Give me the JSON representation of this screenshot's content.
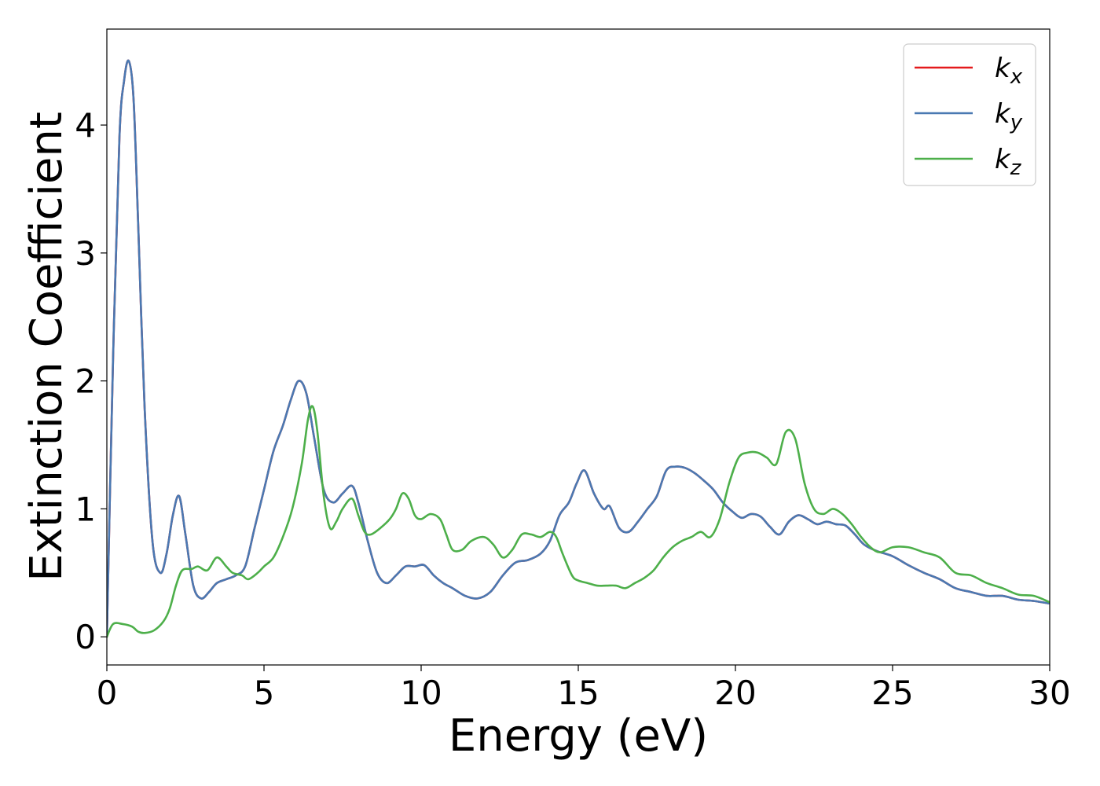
{
  "chart_data": {
    "type": "line",
    "xlabel": "Energy (eV)",
    "ylabel": "Extinction Coefficient",
    "xlim": [
      0,
      30
    ],
    "ylim": [
      -0.22,
      4.75
    ],
    "xticks": [
      0,
      5,
      10,
      15,
      20,
      25,
      30
    ],
    "yticks": [
      0,
      1,
      2,
      3,
      4
    ],
    "grid": false,
    "legend_position": "top-right",
    "series": [
      {
        "name": "k",
        "sub": "x",
        "color": "#e41a1c",
        "x": [
          0,
          0.2,
          0.4,
          0.55,
          0.7,
          0.85,
          1.0,
          1.2,
          1.45,
          1.7,
          1.9,
          2.1,
          2.3,
          2.5,
          2.75,
          3.0,
          3.25,
          3.5,
          3.8,
          4.1,
          4.4,
          4.7,
          5.0,
          5.3,
          5.6,
          5.85,
          6.1,
          6.35,
          6.6,
          6.9,
          7.2,
          7.5,
          7.8,
          8.0,
          8.3,
          8.6,
          8.9,
          9.2,
          9.5,
          9.8,
          10.1,
          10.4,
          10.7,
          11.0,
          11.4,
          11.8,
          12.2,
          12.6,
          13.0,
          13.4,
          13.8,
          14.1,
          14.4,
          14.7,
          14.95,
          15.2,
          15.5,
          15.8,
          16.0,
          16.3,
          16.6,
          16.9,
          17.2,
          17.5,
          17.8,
          18.1,
          18.4,
          18.7,
          19.0,
          19.3,
          19.6,
          19.9,
          20.2,
          20.5,
          20.8,
          21.1,
          21.4,
          21.7,
          22.0,
          22.3,
          22.6,
          22.9,
          23.2,
          23.5,
          23.8,
          24.1,
          24.5,
          25.0,
          25.5,
          26.0,
          26.5,
          27.0,
          27.5,
          28.0,
          28.5,
          29.0,
          29.5,
          30.0
        ],
        "y": [
          0.0,
          2.2,
          3.9,
          4.35,
          4.5,
          4.2,
          3.2,
          1.8,
          0.75,
          0.5,
          0.65,
          0.95,
          1.1,
          0.8,
          0.4,
          0.3,
          0.35,
          0.42,
          0.45,
          0.48,
          0.55,
          0.85,
          1.15,
          1.45,
          1.65,
          1.85,
          2.0,
          1.9,
          1.55,
          1.15,
          1.05,
          1.12,
          1.18,
          1.05,
          0.75,
          0.5,
          0.42,
          0.48,
          0.55,
          0.55,
          0.56,
          0.48,
          0.42,
          0.38,
          0.32,
          0.3,
          0.35,
          0.48,
          0.58,
          0.6,
          0.65,
          0.75,
          0.95,
          1.05,
          1.2,
          1.3,
          1.12,
          1.0,
          1.02,
          0.85,
          0.82,
          0.9,
          1.0,
          1.1,
          1.3,
          1.33,
          1.32,
          1.28,
          1.22,
          1.15,
          1.05,
          0.98,
          0.93,
          0.96,
          0.94,
          0.86,
          0.8,
          0.9,
          0.95,
          0.92,
          0.88,
          0.9,
          0.88,
          0.87,
          0.8,
          0.72,
          0.67,
          0.63,
          0.56,
          0.5,
          0.45,
          0.38,
          0.35,
          0.32,
          0.32,
          0.29,
          0.28,
          0.26
        ]
      },
      {
        "name": "k",
        "sub": "y",
        "color": "#4a79b2",
        "x": [
          0,
          0.2,
          0.4,
          0.55,
          0.7,
          0.85,
          1.0,
          1.2,
          1.45,
          1.7,
          1.9,
          2.1,
          2.3,
          2.5,
          2.75,
          3.0,
          3.25,
          3.5,
          3.8,
          4.1,
          4.4,
          4.7,
          5.0,
          5.3,
          5.6,
          5.85,
          6.1,
          6.35,
          6.6,
          6.9,
          7.2,
          7.5,
          7.8,
          8.0,
          8.3,
          8.6,
          8.9,
          9.2,
          9.5,
          9.8,
          10.1,
          10.4,
          10.7,
          11.0,
          11.4,
          11.8,
          12.2,
          12.6,
          13.0,
          13.4,
          13.8,
          14.1,
          14.4,
          14.7,
          14.95,
          15.2,
          15.5,
          15.8,
          16.0,
          16.3,
          16.6,
          16.9,
          17.2,
          17.5,
          17.8,
          18.1,
          18.4,
          18.7,
          19.0,
          19.3,
          19.6,
          19.9,
          20.2,
          20.5,
          20.8,
          21.1,
          21.4,
          21.7,
          22.0,
          22.3,
          22.6,
          22.9,
          23.2,
          23.5,
          23.8,
          24.1,
          24.5,
          25.0,
          25.5,
          26.0,
          26.5,
          27.0,
          27.5,
          28.0,
          28.5,
          29.0,
          29.5,
          30.0
        ],
        "y": [
          0.0,
          2.2,
          3.9,
          4.35,
          4.5,
          4.2,
          3.2,
          1.8,
          0.75,
          0.5,
          0.65,
          0.95,
          1.1,
          0.8,
          0.4,
          0.3,
          0.35,
          0.42,
          0.45,
          0.48,
          0.55,
          0.85,
          1.15,
          1.45,
          1.65,
          1.85,
          2.0,
          1.9,
          1.55,
          1.15,
          1.05,
          1.12,
          1.18,
          1.05,
          0.75,
          0.5,
          0.42,
          0.48,
          0.55,
          0.55,
          0.56,
          0.48,
          0.42,
          0.38,
          0.32,
          0.3,
          0.35,
          0.48,
          0.58,
          0.6,
          0.65,
          0.75,
          0.95,
          1.05,
          1.2,
          1.3,
          1.12,
          1.0,
          1.02,
          0.85,
          0.82,
          0.9,
          1.0,
          1.1,
          1.3,
          1.33,
          1.32,
          1.28,
          1.22,
          1.15,
          1.05,
          0.98,
          0.93,
          0.96,
          0.94,
          0.86,
          0.8,
          0.9,
          0.95,
          0.92,
          0.88,
          0.9,
          0.88,
          0.87,
          0.8,
          0.72,
          0.67,
          0.63,
          0.56,
          0.5,
          0.45,
          0.38,
          0.35,
          0.32,
          0.32,
          0.29,
          0.28,
          0.26
        ]
      },
      {
        "name": "k",
        "sub": "z",
        "color": "#4daf4a",
        "x": [
          0,
          0.2,
          0.5,
          0.8,
          1.0,
          1.2,
          1.5,
          1.8,
          2.0,
          2.2,
          2.4,
          2.7,
          2.9,
          3.2,
          3.5,
          3.8,
          4.0,
          4.3,
          4.5,
          4.8,
          5.0,
          5.3,
          5.6,
          5.9,
          6.2,
          6.4,
          6.55,
          6.7,
          6.9,
          7.1,
          7.3,
          7.5,
          7.8,
          8.0,
          8.2,
          8.4,
          8.7,
          9.0,
          9.2,
          9.4,
          9.6,
          9.8,
          10.0,
          10.3,
          10.6,
          10.8,
          11.0,
          11.3,
          11.6,
          12.0,
          12.3,
          12.6,
          12.9,
          13.2,
          13.5,
          13.8,
          14.1,
          14.3,
          14.5,
          14.8,
          15.0,
          15.3,
          15.6,
          15.9,
          16.2,
          16.5,
          16.8,
          17.1,
          17.4,
          17.7,
          18.0,
          18.3,
          18.6,
          18.9,
          19.2,
          19.5,
          19.8,
          20.1,
          20.4,
          20.7,
          21.0,
          21.3,
          21.6,
          21.9,
          22.2,
          22.5,
          22.8,
          23.1,
          23.4,
          23.7,
          24.0,
          24.3,
          24.6,
          25.0,
          25.5,
          26.0,
          26.5,
          27.0,
          27.5,
          28.0,
          28.5,
          29.0,
          29.5,
          30.0
        ],
        "y": [
          0.0,
          0.1,
          0.1,
          0.08,
          0.04,
          0.03,
          0.05,
          0.12,
          0.22,
          0.4,
          0.52,
          0.53,
          0.55,
          0.52,
          0.62,
          0.55,
          0.5,
          0.48,
          0.45,
          0.5,
          0.55,
          0.62,
          0.78,
          1.0,
          1.35,
          1.7,
          1.8,
          1.6,
          1.1,
          0.85,
          0.9,
          1.0,
          1.08,
          0.95,
          0.82,
          0.8,
          0.85,
          0.92,
          1.0,
          1.12,
          1.08,
          0.95,
          0.92,
          0.96,
          0.92,
          0.8,
          0.68,
          0.68,
          0.75,
          0.78,
          0.72,
          0.62,
          0.68,
          0.8,
          0.8,
          0.78,
          0.82,
          0.78,
          0.65,
          0.48,
          0.44,
          0.42,
          0.4,
          0.4,
          0.4,
          0.38,
          0.42,
          0.46,
          0.52,
          0.62,
          0.7,
          0.75,
          0.78,
          0.82,
          0.78,
          0.92,
          1.2,
          1.4,
          1.44,
          1.44,
          1.4,
          1.35,
          1.6,
          1.55,
          1.2,
          1.0,
          0.96,
          1.0,
          0.96,
          0.88,
          0.78,
          0.7,
          0.66,
          0.7,
          0.7,
          0.66,
          0.62,
          0.5,
          0.48,
          0.42,
          0.38,
          0.33,
          0.32,
          0.27
        ]
      }
    ]
  }
}
